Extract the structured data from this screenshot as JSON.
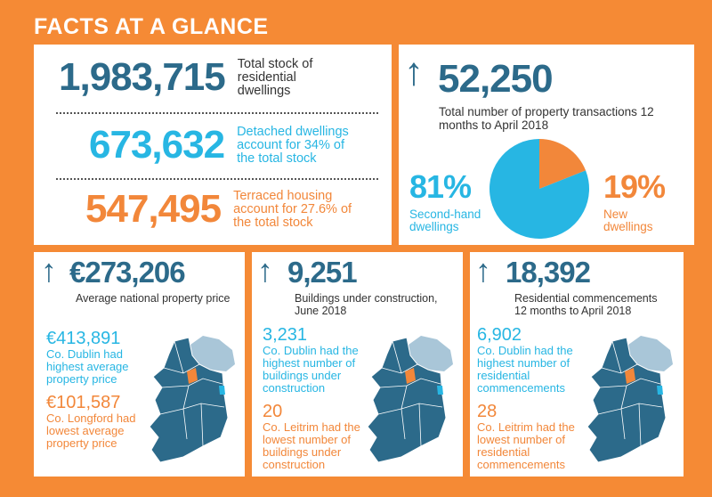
{
  "title": "FACTS AT A GLANCE",
  "colors": {
    "background": "#f58a35",
    "navy": "#2c6a8a",
    "cyan": "#27b6e3",
    "orange": "#f2873a"
  },
  "stock": [
    {
      "value": "1,983,715",
      "label": "Total stock of residential dwellings",
      "color": "navy"
    },
    {
      "value": "673,632",
      "label": "Detached dwellings account for 34% of the total stock",
      "color": "cyan"
    },
    {
      "value": "547,495",
      "label": "Terraced housing account for 27.6% of the total stock",
      "color": "orange"
    }
  ],
  "transactions": {
    "icon": "arrow-up-icon",
    "value": "52,250",
    "label": "Total number of property transactions 12 months to April 2018",
    "second_hand": {
      "pct": "81%",
      "label": "Second-hand dwellings"
    },
    "new": {
      "pct": "19%",
      "label": "New dwellings"
    },
    "pie": {
      "type": "pie",
      "slices": [
        {
          "label": "Second-hand dwellings",
          "value": 81,
          "color": "#27b6e3"
        },
        {
          "label": "New dwellings",
          "value": 19,
          "color": "#f2873a"
        }
      ]
    }
  },
  "price": {
    "value": "€273,206",
    "label": "Average national property price",
    "high_value": "€413,891",
    "high_label": "Co. Dublin had highest average property price",
    "low_value": "€101,587",
    "low_label": "Co. Longford had lowest average property price"
  },
  "construction": {
    "value": "9,251",
    "label": "Buildings under construction, June 2018",
    "high_value": "3,231",
    "high_label": "Co. Dublin had the highest number of buildings under construction",
    "low_value": "20",
    "low_label": "Co. Leitrim had the lowest number of buildings under construction"
  },
  "commencements": {
    "value": "18,392",
    "label": "Residential commencements 12 months to April 2018",
    "high_value": "6,902",
    "high_label": "Co. Dublin had the highest number of residential commencements",
    "low_value": "28",
    "low_label": "Co. Leitrim had the lowest number of residential commencements"
  }
}
